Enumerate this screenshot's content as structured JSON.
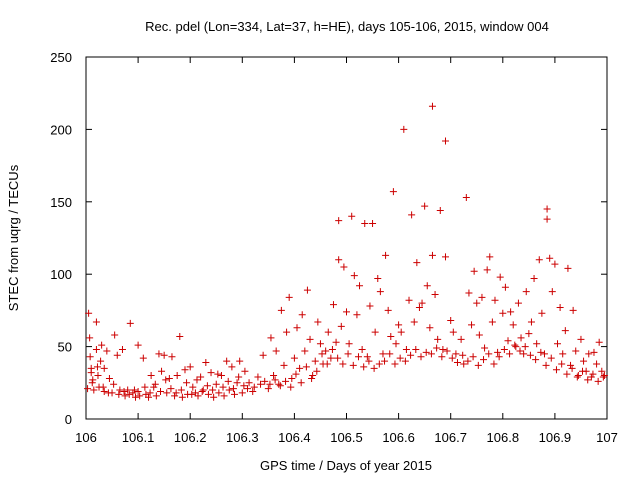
{
  "chart_data": {
    "type": "scatter",
    "title": "Rec. pdel (Lon=334, Lat=37, h=HE), days 105-106, 2015, window 004",
    "xlabel": "GPS time / Days of year 2015",
    "ylabel": "STEC from uqrg / TECUs",
    "xlim": [
      106,
      107
    ],
    "ylim": [
      0,
      250
    ],
    "x_ticks": [
      "106",
      "106.1",
      "106.2",
      "106.3",
      "106.4",
      "106.5",
      "106.6",
      "106.7",
      "106.8",
      "106.9",
      "107"
    ],
    "y_ticks": [
      "0",
      "50",
      "100",
      "150",
      "200",
      "250"
    ],
    "grid": false,
    "marker": "+",
    "color": "#cc0000",
    "points": [
      [
        106.005,
        73
      ],
      [
        106.007,
        56
      ],
      [
        106.008,
        43
      ],
      [
        106.01,
        35
      ],
      [
        106.01,
        32
      ],
      [
        106.012,
        25
      ],
      [
        106.015,
        20
      ],
      [
        106.02,
        67
      ],
      [
        106.02,
        48
      ],
      [
        106.022,
        36
      ],
      [
        106.025,
        22
      ],
      [
        106.028,
        40
      ],
      [
        106.03,
        51
      ],
      [
        106.035,
        35
      ],
      [
        106.035,
        19
      ],
      [
        106.04,
        47
      ],
      [
        106.045,
        28
      ],
      [
        106.05,
        18
      ],
      [
        106.055,
        58
      ],
      [
        106.06,
        44
      ],
      [
        106.065,
        20
      ],
      [
        106.07,
        48
      ],
      [
        106.075,
        16
      ],
      [
        106.08,
        20
      ],
      [
        106.085,
        66
      ],
      [
        106.09,
        18
      ],
      [
        106.095,
        15
      ],
      [
        106.1,
        51
      ],
      [
        106.1,
        19
      ],
      [
        106.11,
        42
      ],
      [
        106.115,
        17
      ],
      [
        106.12,
        15
      ],
      [
        106.125,
        30
      ],
      [
        106.13,
        22
      ],
      [
        106.135,
        16
      ],
      [
        106.14,
        45
      ],
      [
        106.145,
        33
      ],
      [
        106.15,
        44
      ],
      [
        106.155,
        18
      ],
      [
        106.16,
        28
      ],
      [
        106.165,
        43
      ],
      [
        106.17,
        16
      ],
      [
        106.175,
        30
      ],
      [
        106.18,
        57
      ],
      [
        106.185,
        15
      ],
      [
        106.19,
        34
      ],
      [
        106.195,
        17
      ],
      [
        106.2,
        36
      ],
      [
        106.205,
        22
      ],
      [
        106.21,
        18
      ],
      [
        106.215,
        16
      ],
      [
        106.22,
        29
      ],
      [
        106.225,
        20
      ],
      [
        106.23,
        39
      ],
      [
        106.235,
        17
      ],
      [
        106.24,
        32
      ],
      [
        106.245,
        15
      ],
      [
        106.25,
        24
      ],
      [
        106.255,
        18
      ],
      [
        106.26,
        30
      ],
      [
        106.265,
        16
      ],
      [
        106.27,
        40
      ],
      [
        106.275,
        20
      ],
      [
        106.28,
        36
      ],
      [
        106.285,
        17
      ],
      [
        106.29,
        25
      ],
      [
        106.295,
        40
      ],
      [
        106.3,
        18
      ],
      [
        106.305,
        33
      ],
      [
        106.31,
        21
      ],
      [
        106.32,
        19
      ],
      [
        106.33,
        29
      ],
      [
        106.335,
        24
      ],
      [
        106.34,
        44
      ],
      [
        106.35,
        21
      ],
      [
        106.355,
        56
      ],
      [
        106.36,
        30
      ],
      [
        106.365,
        47
      ],
      [
        106.37,
        24
      ],
      [
        106.375,
        75
      ],
      [
        106.38,
        37
      ],
      [
        106.385,
        60
      ],
      [
        106.39,
        84
      ],
      [
        106.395,
        28
      ],
      [
        106.4,
        42
      ],
      [
        106.405,
        63
      ],
      [
        106.41,
        35
      ],
      [
        106.415,
        72
      ],
      [
        106.42,
        47
      ],
      [
        106.425,
        89
      ],
      [
        106.43,
        55
      ],
      [
        106.435,
        30
      ],
      [
        106.44,
        40
      ],
      [
        106.445,
        67
      ],
      [
        106.45,
        52
      ],
      [
        106.455,
        38
      ],
      [
        106.46,
        47
      ],
      [
        106.465,
        60
      ],
      [
        106.47,
        42
      ],
      [
        106.475,
        79
      ],
      [
        106.48,
        53
      ],
      [
        106.485,
        137
      ],
      [
        106.485,
        110
      ],
      [
        106.49,
        64
      ],
      [
        106.495,
        105
      ],
      [
        106.5,
        74
      ],
      [
        106.505,
        52
      ],
      [
        106.51,
        140
      ],
      [
        106.515,
        99
      ],
      [
        106.52,
        72
      ],
      [
        106.525,
        92
      ],
      [
        106.53,
        48
      ],
      [
        106.535,
        135
      ],
      [
        106.54,
        43
      ],
      [
        106.545,
        78
      ],
      [
        106.55,
        135
      ],
      [
        106.555,
        60
      ],
      [
        106.56,
        97
      ],
      [
        106.565,
        88
      ],
      [
        106.57,
        45
      ],
      [
        106.575,
        113
      ],
      [
        106.58,
        75
      ],
      [
        106.585,
        57
      ],
      [
        106.59,
        157
      ],
      [
        106.595,
        52
      ],
      [
        106.6,
        65
      ],
      [
        106.605,
        60
      ],
      [
        106.61,
        200
      ],
      [
        106.615,
        48
      ],
      [
        106.62,
        82
      ],
      [
        106.625,
        141
      ],
      [
        106.63,
        67
      ],
      [
        106.635,
        108
      ],
      [
        106.64,
        77
      ],
      [
        106.645,
        80
      ],
      [
        106.65,
        147
      ],
      [
        106.655,
        92
      ],
      [
        106.66,
        63
      ],
      [
        106.665,
        216
      ],
      [
        106.665,
        113
      ],
      [
        106.67,
        86
      ],
      [
        106.675,
        55
      ],
      [
        106.68,
        144
      ],
      [
        106.685,
        48
      ],
      [
        106.69,
        192
      ],
      [
        106.69,
        112
      ],
      [
        106.7,
        68
      ],
      [
        106.705,
        60
      ],
      [
        106.71,
        45
      ],
      [
        106.72,
        55
      ],
      [
        106.725,
        38
      ],
      [
        106.73,
        153
      ],
      [
        106.735,
        87
      ],
      [
        106.74,
        65
      ],
      [
        106.745,
        102
      ],
      [
        106.75,
        80
      ],
      [
        106.755,
        58
      ],
      [
        106.76,
        84
      ],
      [
        106.765,
        49
      ],
      [
        106.77,
        103
      ],
      [
        106.775,
        112
      ],
      [
        106.78,
        67
      ],
      [
        106.785,
        82
      ],
      [
        106.79,
        46
      ],
      [
        106.795,
        98
      ],
      [
        106.8,
        73
      ],
      [
        106.805,
        91
      ],
      [
        106.81,
        54
      ],
      [
        106.815,
        74
      ],
      [
        106.82,
        65
      ],
      [
        106.825,
        50
      ],
      [
        106.83,
        80
      ],
      [
        106.835,
        56
      ],
      [
        106.84,
        45
      ],
      [
        106.845,
        88
      ],
      [
        106.85,
        59
      ],
      [
        106.855,
        67
      ],
      [
        106.86,
        97
      ],
      [
        106.865,
        52
      ],
      [
        106.87,
        110
      ],
      [
        106.875,
        73
      ],
      [
        106.88,
        45
      ],
      [
        106.885,
        145
      ],
      [
        106.885,
        138
      ],
      [
        106.89,
        111
      ],
      [
        106.895,
        88
      ],
      [
        106.9,
        107
      ],
      [
        106.905,
        52
      ],
      [
        106.91,
        77
      ],
      [
        106.915,
        45
      ],
      [
        106.92,
        61
      ],
      [
        106.925,
        104
      ],
      [
        106.93,
        37
      ],
      [
        106.935,
        75
      ],
      [
        106.94,
        47
      ],
      [
        106.945,
        30
      ],
      [
        106.95,
        55
      ],
      [
        106.955,
        40
      ],
      [
        106.96,
        33
      ],
      [
        106.965,
        45
      ],
      [
        106.97,
        29
      ],
      [
        106.975,
        46
      ],
      [
        106.98,
        38
      ],
      [
        106.985,
        53
      ],
      [
        106.99,
        33
      ],
      [
        106.995,
        30
      ],
      [
        106.003,
        21
      ],
      [
        106.013,
        27
      ],
      [
        106.023,
        30
      ],
      [
        106.033,
        22
      ],
      [
        106.043,
        18
      ],
      [
        106.053,
        24
      ],
      [
        106.063,
        17
      ],
      [
        106.073,
        19
      ],
      [
        106.083,
        17
      ],
      [
        106.093,
        20
      ],
      [
        106.103,
        16
      ],
      [
        106.113,
        22
      ],
      [
        106.123,
        18
      ],
      [
        106.133,
        24
      ],
      [
        106.143,
        19
      ],
      [
        106.153,
        27
      ],
      [
        106.163,
        21
      ],
      [
        106.173,
        18
      ],
      [
        106.183,
        20
      ],
      [
        106.193,
        25
      ],
      [
        106.203,
        17
      ],
      [
        106.213,
        27
      ],
      [
        106.223,
        19
      ],
      [
        106.233,
        23
      ],
      [
        106.243,
        20
      ],
      [
        106.253,
        31
      ],
      [
        106.263,
        22
      ],
      [
        106.273,
        26
      ],
      [
        106.283,
        21
      ],
      [
        106.293,
        29
      ],
      [
        106.303,
        23
      ],
      [
        106.313,
        25
      ],
      [
        106.323,
        22
      ],
      [
        106.343,
        26
      ],
      [
        106.353,
        24
      ],
      [
        106.363,
        27
      ],
      [
        106.373,
        23
      ],
      [
        106.383,
        26
      ],
      [
        106.393,
        22
      ],
      [
        106.403,
        31
      ],
      [
        106.413,
        25
      ],
      [
        106.423,
        36
      ],
      [
        106.433,
        28
      ],
      [
        106.443,
        33
      ],
      [
        106.453,
        45
      ],
      [
        106.463,
        38
      ],
      [
        106.473,
        48
      ],
      [
        106.483,
        42
      ],
      [
        106.493,
        38
      ],
      [
        106.503,
        45
      ],
      [
        106.513,
        37
      ],
      [
        106.523,
        43
      ],
      [
        106.533,
        36
      ],
      [
        106.543,
        40
      ],
      [
        106.553,
        35
      ],
      [
        106.563,
        38
      ],
      [
        106.573,
        40
      ],
      [
        106.583,
        45
      ],
      [
        106.593,
        38
      ],
      [
        106.603,
        42
      ],
      [
        106.613,
        40
      ],
      [
        106.623,
        44
      ],
      [
        106.633,
        48
      ],
      [
        106.643,
        43
      ],
      [
        106.653,
        46
      ],
      [
        106.663,
        45
      ],
      [
        106.673,
        49
      ],
      [
        106.683,
        43
      ],
      [
        106.693,
        47
      ],
      [
        106.703,
        42
      ],
      [
        106.713,
        39
      ],
      [
        106.723,
        44
      ],
      [
        106.733,
        40
      ],
      [
        106.743,
        43
      ],
      [
        106.753,
        37
      ],
      [
        106.763,
        41
      ],
      [
        106.773,
        45
      ],
      [
        106.783,
        38
      ],
      [
        106.793,
        43
      ],
      [
        106.803,
        48
      ],
      [
        106.813,
        45
      ],
      [
        106.823,
        51
      ],
      [
        106.833,
        47
      ],
      [
        106.843,
        50
      ],
      [
        106.853,
        44
      ],
      [
        106.863,
        41
      ],
      [
        106.873,
        46
      ],
      [
        106.883,
        37
      ],
      [
        106.893,
        42
      ],
      [
        106.903,
        34
      ],
      [
        106.913,
        38
      ],
      [
        106.923,
        31
      ],
      [
        106.933,
        35
      ],
      [
        106.943,
        29
      ],
      [
        106.953,
        33
      ],
      [
        106.963,
        27
      ],
      [
        106.973,
        31
      ],
      [
        106.983,
        26
      ],
      [
        106.993,
        29
      ]
    ]
  }
}
